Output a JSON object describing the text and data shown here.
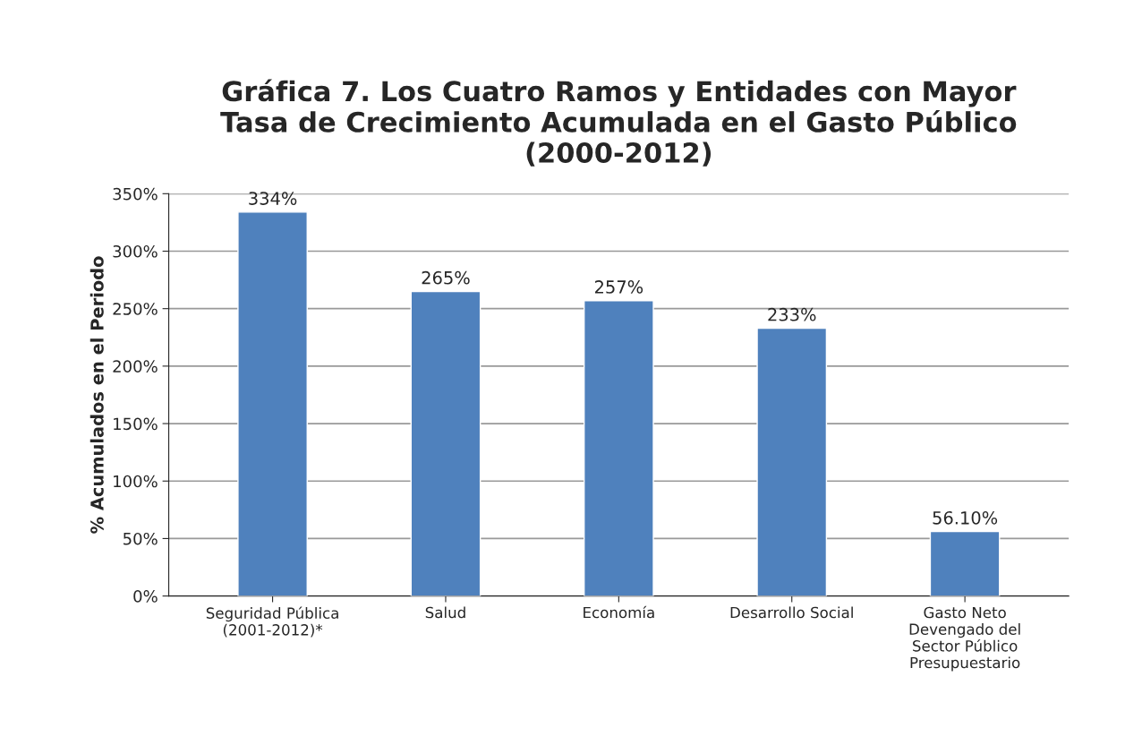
{
  "chart_data": {
    "type": "bar",
    "title": "Gráfica 7. Los Cuatro Ramos y Entidades con Mayor\nTasa de Crecimiento Acumulada en el Gasto Público\n(2000-2012)",
    "ylabel": "% Acumulados en el Periodo",
    "categories": [
      "Seguridad Pública\n(2001-2012)*",
      "Salud",
      "Economía",
      "Desarrollo Social",
      "Gasto Neto\nDevengado del\nSector Público\nPresupuestario"
    ],
    "values": [
      334,
      265,
      257,
      233,
      56.1
    ],
    "value_labels": [
      "334%",
      "265%",
      "257%",
      "233%",
      "56.10%"
    ],
    "color": "#4f81bd",
    "ylim": [
      0,
      350
    ],
    "yticks": [
      {
        "value": 0,
        "label": "0%"
      },
      {
        "value": 50,
        "label": "50%"
      },
      {
        "value": 100,
        "label": "100%"
      },
      {
        "value": 150,
        "label": "150%"
      },
      {
        "value": 200,
        "label": "200%"
      },
      {
        "value": 250,
        "label": "250%"
      },
      {
        "value": 300,
        "label": "300%"
      },
      {
        "value": 350,
        "label": "350%"
      }
    ],
    "grid": "y",
    "legend": false
  }
}
